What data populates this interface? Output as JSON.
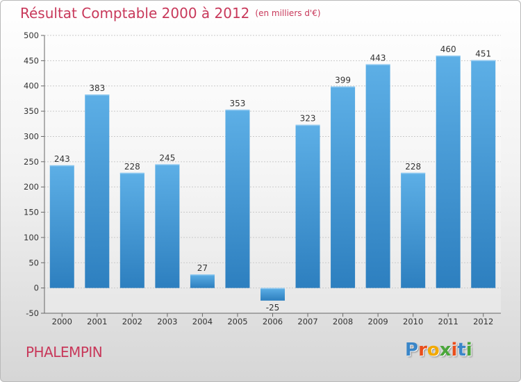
{
  "header": {
    "title": "Résultat Comptable 2000 à 2012",
    "subtitle": "(en milliers d'€)"
  },
  "footer": {
    "commune": "PHALEMPIN",
    "logo": {
      "letters": [
        "P",
        "r",
        "o",
        "x",
        "i",
        "t",
        "i"
      ]
    }
  },
  "colors": {
    "title": "#c8385a",
    "bar_light": "#5dafe6",
    "bar_dark": "#2d7fbf",
    "logo": [
      "#3a86c8",
      "#e94e1b",
      "#f2a900",
      "#4aa63a",
      "#e94e1b",
      "#3a86c8",
      "#4aa63a"
    ]
  },
  "chart_data": {
    "type": "bar",
    "categories": [
      "2000",
      "2001",
      "2002",
      "2003",
      "2004",
      "2005",
      "2006",
      "2007",
      "2008",
      "2009",
      "2010",
      "2011",
      "2012"
    ],
    "values": [
      243,
      383,
      228,
      245,
      27,
      353,
      -25,
      323,
      399,
      443,
      228,
      460,
      451
    ],
    "data_labels": [
      "243",
      "383",
      "228",
      "245",
      "27",
      "353",
      "-25",
      "323",
      "399",
      "443",
      "228",
      "460",
      "451"
    ],
    "y_ticks": [
      -50,
      0,
      50,
      100,
      150,
      200,
      250,
      300,
      350,
      400,
      450,
      500
    ],
    "ylim": [
      -50,
      500
    ],
    "grid": true,
    "title": "Résultat Comptable 2000 à 2012",
    "xlabel": "",
    "ylabel": ""
  }
}
